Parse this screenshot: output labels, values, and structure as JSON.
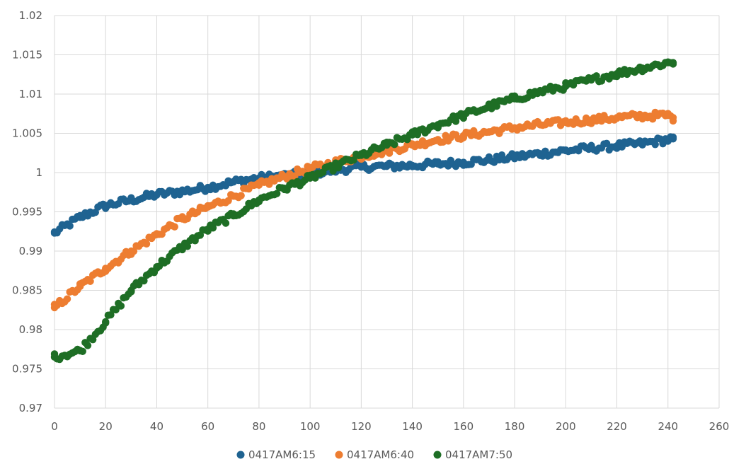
{
  "chart_data": {
    "type": "scatter",
    "title": "",
    "xlabel": "",
    "ylabel": "",
    "xlim": [
      0,
      260
    ],
    "ylim": [
      0.97,
      1.02
    ],
    "x_ticks": [
      0,
      20,
      40,
      60,
      80,
      100,
      120,
      140,
      160,
      180,
      200,
      220,
      240,
      260
    ],
    "y_ticks": [
      0.97,
      0.975,
      0.98,
      0.985,
      0.99,
      0.995,
      1,
      1.005,
      1.01,
      1.015,
      1.02
    ],
    "x_tick_labels": [
      "0",
      "20",
      "40",
      "60",
      "80",
      "100",
      "120",
      "140",
      "160",
      "180",
      "200",
      "220",
      "240",
      "260"
    ],
    "y_tick_labels": [
      "0.97",
      "0.975",
      "0.98",
      "0.985",
      "0.99",
      "0.995",
      "1",
      "1.005",
      "1.01",
      "1.015",
      "1.02"
    ],
    "grid": true,
    "legend_position": "bottom",
    "series": [
      {
        "name": "0417AM6:15",
        "color": "#1f6391",
        "x": [
          0,
          10,
          20,
          30,
          40,
          50,
          60,
          70,
          80,
          90,
          100,
          110,
          120,
          130,
          140,
          150,
          160,
          170,
          180,
          190,
          200,
          210,
          220,
          230,
          240,
          242
        ],
        "y": [
          0.9923,
          0.9943,
          0.9958,
          0.9965,
          0.9972,
          0.9976,
          0.9981,
          0.9988,
          0.9993,
          0.9996,
          0.9999,
          1.0003,
          1.0007,
          1.0008,
          1.0009,
          1.0011,
          1.0013,
          1.0016,
          1.002,
          1.0024,
          1.0028,
          1.0031,
          1.0034,
          1.0037,
          1.0042,
          1.0043
        ]
      },
      {
        "name": "0417AM6:40",
        "color": "#ed7d31",
        "x": [
          0,
          10,
          20,
          30,
          40,
          50,
          60,
          70,
          80,
          90,
          100,
          110,
          120,
          130,
          140,
          150,
          160,
          170,
          180,
          190,
          200,
          210,
          220,
          230,
          240,
          242
        ],
        "y": [
          0.9828,
          0.9855,
          0.9878,
          0.99,
          0.9921,
          0.9941,
          0.9956,
          0.997,
          0.9984,
          0.9995,
          1.0005,
          1.0013,
          1.0021,
          1.0028,
          1.0035,
          1.0042,
          1.0047,
          1.0052,
          1.0057,
          1.0061,
          1.0064,
          1.0067,
          1.007,
          1.0072,
          1.0073,
          1.007
        ]
      },
      {
        "name": "0417AM7:50",
        "color": "#1e6e25",
        "x": [
          0,
          10,
          20,
          30,
          40,
          50,
          60,
          70,
          80,
          90,
          100,
          110,
          120,
          130,
          140,
          150,
          160,
          170,
          180,
          190,
          200,
          210,
          220,
          230,
          240,
          242
        ],
        "y": [
          0.9765,
          0.9773,
          0.981,
          0.985,
          0.988,
          0.9905,
          0.9928,
          0.9945,
          0.9965,
          0.998,
          0.9993,
          1.0008,
          1.0022,
          1.0035,
          1.0048,
          1.0061,
          1.0073,
          1.0084,
          1.0094,
          1.0103,
          1.011,
          1.0118,
          1.0126,
          1.0133,
          1.014,
          1.014
        ]
      }
    ]
  }
}
